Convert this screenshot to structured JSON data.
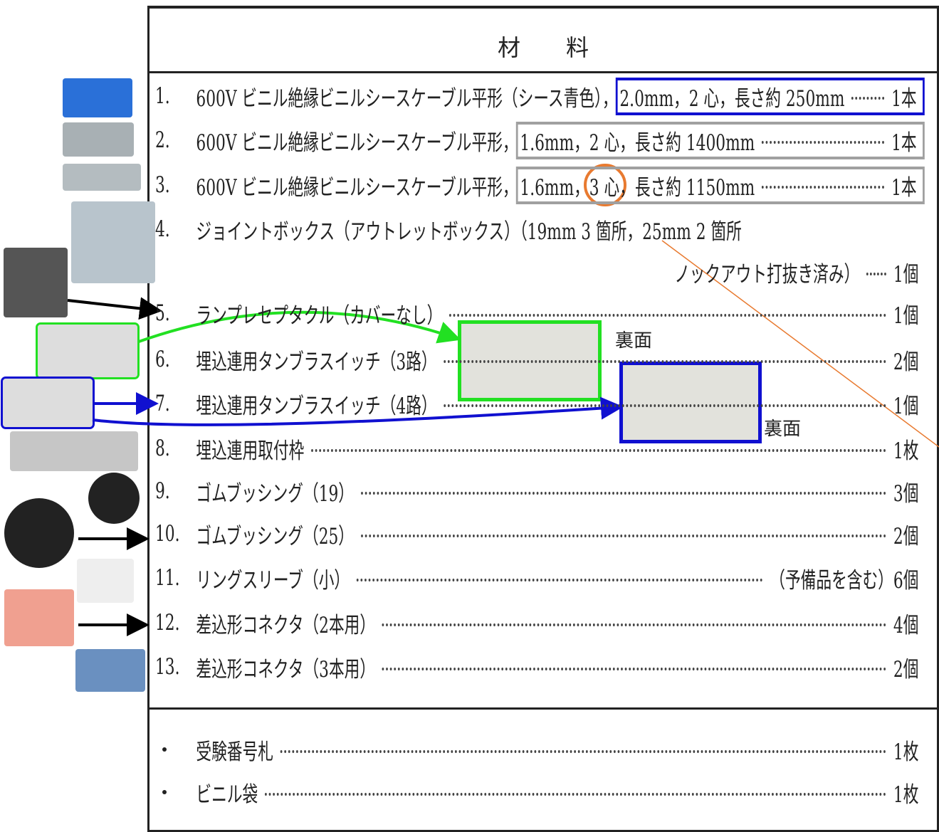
{
  "header": {
    "title": "材　　料"
  },
  "items": [
    {
      "number": "1.",
      "name": "600V ビニル絶縁ビニルシースケーブル平形（シース青色），",
      "spec": "2.0mm，2 心，長さ約 250mm",
      "quantity": "1本"
    },
    {
      "number": "2.",
      "name": "600V ビニル絶縁ビニルシースケーブル平形，",
      "spec": "1.6mm，2 心，長さ約 1400mm",
      "quantity": "1本"
    },
    {
      "number": "3.",
      "name": "600V ビニル絶縁ビニルシースケーブル平形，",
      "spec": "1.6mm，3 心，長さ約 1150mm",
      "quantity": "1本"
    },
    {
      "number": "4.",
      "name": "ジョイントボックス（アウトレットボックス）（19mm 3 箇所，25mm 2 箇所",
      "continuation": "ノックアウト打抜き済み）",
      "quantity": "1個"
    },
    {
      "number": "5.",
      "name": "ランプレセプタクル（カバーなし）",
      "quantity": "1個"
    },
    {
      "number": "6.",
      "name": "埋込連用タンブラスイッチ（3路）",
      "quantity": "2個"
    },
    {
      "number": "7.",
      "name": "埋込連用タンブラスイッチ（4路）",
      "quantity": "1個"
    },
    {
      "number": "8.",
      "name": "埋込連用取付枠",
      "quantity": "1枚"
    },
    {
      "number": "9.",
      "name": "ゴムブッシング（19）",
      "quantity": "3個"
    },
    {
      "number": "10.",
      "name": "ゴムブッシング（25）",
      "quantity": "2個"
    },
    {
      "number": "11.",
      "name": "リングスリーブ（小）",
      "note": "（予備品を含む）",
      "quantity": "6個"
    },
    {
      "number": "12.",
      "name": "差込形コネクタ（2本用）",
      "quantity": "4個"
    },
    {
      "number": "13.",
      "name": "差込形コネクタ（3本用）",
      "quantity": "2個"
    }
  ],
  "extras": [
    {
      "name": "受験番号札",
      "quantity": "1枚"
    },
    {
      "name": "ビニル袋",
      "quantity": "1枚"
    }
  ],
  "annotations": [
    "裏面",
    "裏面"
  ]
}
